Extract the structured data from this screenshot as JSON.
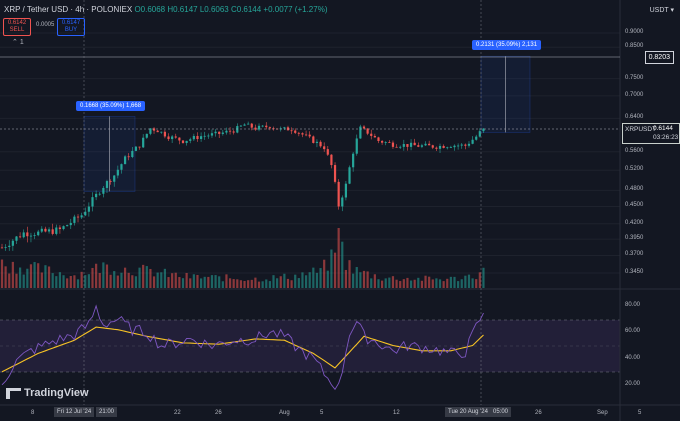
{
  "header": {
    "symbol_line": "XRP / Tether USD · 4h · POLONIEX",
    "ohlc": "O0.6068 H0.6147 L0.6063 C0.6144 +0.0077 (+1.27%)"
  },
  "trade": {
    "sell_price": "0.6142",
    "sell_label": "SELL",
    "spread": "0.0005",
    "buy_price": "0.6147",
    "buy_label": "BUY"
  },
  "interval_indicator": "1",
  "currency": "USDT",
  "price_axis": [
    "0.9000",
    "0.8500",
    "0.7500",
    "0.7000",
    "0.6400",
    "0.5600",
    "0.5200",
    "0.4800",
    "0.4500",
    "0.4200",
    "0.3950",
    "0.3700",
    "0.3450"
  ],
  "top_price_tag": "0.8203",
  "price_ticker": {
    "symbol": "XRPUSDT",
    "price": "0.6144",
    "countdown": "03:26:23"
  },
  "callouts": [
    "0.1668 (35.09%) 1,668",
    "0.2131 (35.09%) 2,131"
  ],
  "rsi_axis": [
    "80.00",
    "60.00",
    "40.00",
    "20.00"
  ],
  "time_axis": [
    "8",
    "22",
    "26",
    "Aug",
    "5",
    "12",
    "26",
    "Sep",
    "5"
  ],
  "time_tags": [
    "Fri 12 Jul '24",
    "21:00",
    "Tue 20 Aug '24",
    "05:00"
  ],
  "logo": "TradingView",
  "colors": {
    "up": "#26a69a",
    "down": "#ef5350",
    "rsi": "#7e57c2",
    "rsi_ma": "#f7c325",
    "accent": "#2962ff"
  },
  "chart_data": {
    "type": "candlestick",
    "timeframe": "4h",
    "ohlc_last": {
      "open": 0.6068,
      "high": 0.6147,
      "low": 0.6063,
      "close": 0.6144
    },
    "price_path": [
      [
        0,
        0.382
      ],
      [
        6,
        0.405
      ],
      [
        10,
        0.405
      ],
      [
        16,
        0.41
      ],
      [
        22,
        0.435
      ],
      [
        28,
        0.488
      ],
      [
        31,
        0.51
      ],
      [
        34,
        0.545
      ],
      [
        38,
        0.575
      ],
      [
        41,
        0.615
      ],
      [
        43,
        0.61
      ],
      [
        46,
        0.595
      ],
      [
        50,
        0.585
      ],
      [
        55,
        0.596
      ],
      [
        60,
        0.602
      ],
      [
        64,
        0.61
      ],
      [
        67,
        0.624
      ],
      [
        70,
        0.615
      ],
      [
        74,
        0.62
      ],
      [
        77,
        0.612
      ],
      [
        80,
        0.614
      ],
      [
        82,
        0.605
      ],
      [
        86,
        0.585
      ],
      [
        89,
        0.57
      ],
      [
        91,
        0.53
      ],
      [
        93,
        0.452
      ],
      [
        95,
        0.49
      ],
      [
        97,
        0.56
      ],
      [
        99,
        0.615
      ],
      [
        101,
        0.605
      ],
      [
        104,
        0.585
      ],
      [
        108,
        0.577
      ],
      [
        112,
        0.575
      ],
      [
        116,
        0.573
      ],
      [
        120,
        0.572
      ],
      [
        124,
        0.575
      ],
      [
        128,
        0.574
      ],
      [
        131,
        0.595
      ],
      [
        133,
        0.6144
      ]
    ],
    "volume_path": [
      [
        0,
        0.42
      ],
      [
        10,
        0.33
      ],
      [
        20,
        0.22
      ],
      [
        28,
        0.38
      ],
      [
        32,
        0.34
      ],
      [
        40,
        0.3
      ],
      [
        50,
        0.2
      ],
      [
        60,
        0.18
      ],
      [
        70,
        0.16
      ],
      [
        80,
        0.2
      ],
      [
        88,
        0.3
      ],
      [
        91,
        0.5
      ],
      [
        93,
        1.0
      ],
      [
        95,
        0.45
      ],
      [
        98,
        0.3
      ],
      [
        105,
        0.18
      ],
      [
        115,
        0.16
      ],
      [
        125,
        0.16
      ],
      [
        130,
        0.22
      ],
      [
        133,
        0.28
      ]
    ],
    "rsi_path": [
      [
        0,
        22
      ],
      [
        4,
        38
      ],
      [
        8,
        46
      ],
      [
        14,
        53
      ],
      [
        20,
        58
      ],
      [
        24,
        66
      ],
      [
        26,
        79
      ],
      [
        28,
        66
      ],
      [
        32,
        70
      ],
      [
        36,
        62
      ],
      [
        40,
        60
      ],
      [
        44,
        50
      ],
      [
        48,
        52
      ],
      [
        52,
        55
      ],
      [
        58,
        50
      ],
      [
        64,
        54
      ],
      [
        70,
        55
      ],
      [
        74,
        60
      ],
      [
        78,
        57
      ],
      [
        82,
        47
      ],
      [
        86,
        40
      ],
      [
        90,
        25
      ],
      [
        93,
        18
      ],
      [
        96,
        60
      ],
      [
        98,
        68
      ],
      [
        100,
        57
      ],
      [
        104,
        52
      ],
      [
        108,
        46
      ],
      [
        112,
        50
      ],
      [
        118,
        48
      ],
      [
        124,
        44
      ],
      [
        128,
        45
      ],
      [
        130,
        58
      ],
      [
        132,
        70
      ],
      [
        133,
        72
      ]
    ],
    "rsi_ma_path": [
      [
        0,
        30
      ],
      [
        10,
        44
      ],
      [
        20,
        54
      ],
      [
        26,
        64
      ],
      [
        32,
        62
      ],
      [
        40,
        57
      ],
      [
        50,
        52
      ],
      [
        60,
        51
      ],
      [
        70,
        55
      ],
      [
        78,
        54
      ],
      [
        86,
        44
      ],
      [
        92,
        33
      ],
      [
        96,
        45
      ],
      [
        100,
        57
      ],
      [
        108,
        50
      ],
      [
        116,
        46
      ],
      [
        124,
        46
      ],
      [
        130,
        50
      ],
      [
        133,
        58
      ]
    ],
    "rsi_band": [
      30,
      70
    ],
    "measurements": [
      {
        "change": 0.1668,
        "percent": 35.09,
        "bars": 1668
      },
      {
        "change": 0.2131,
        "percent": 35.09,
        "bars": 2131
      }
    ],
    "horizontal_levels": [
      0.8203,
      0.6144
    ]
  }
}
